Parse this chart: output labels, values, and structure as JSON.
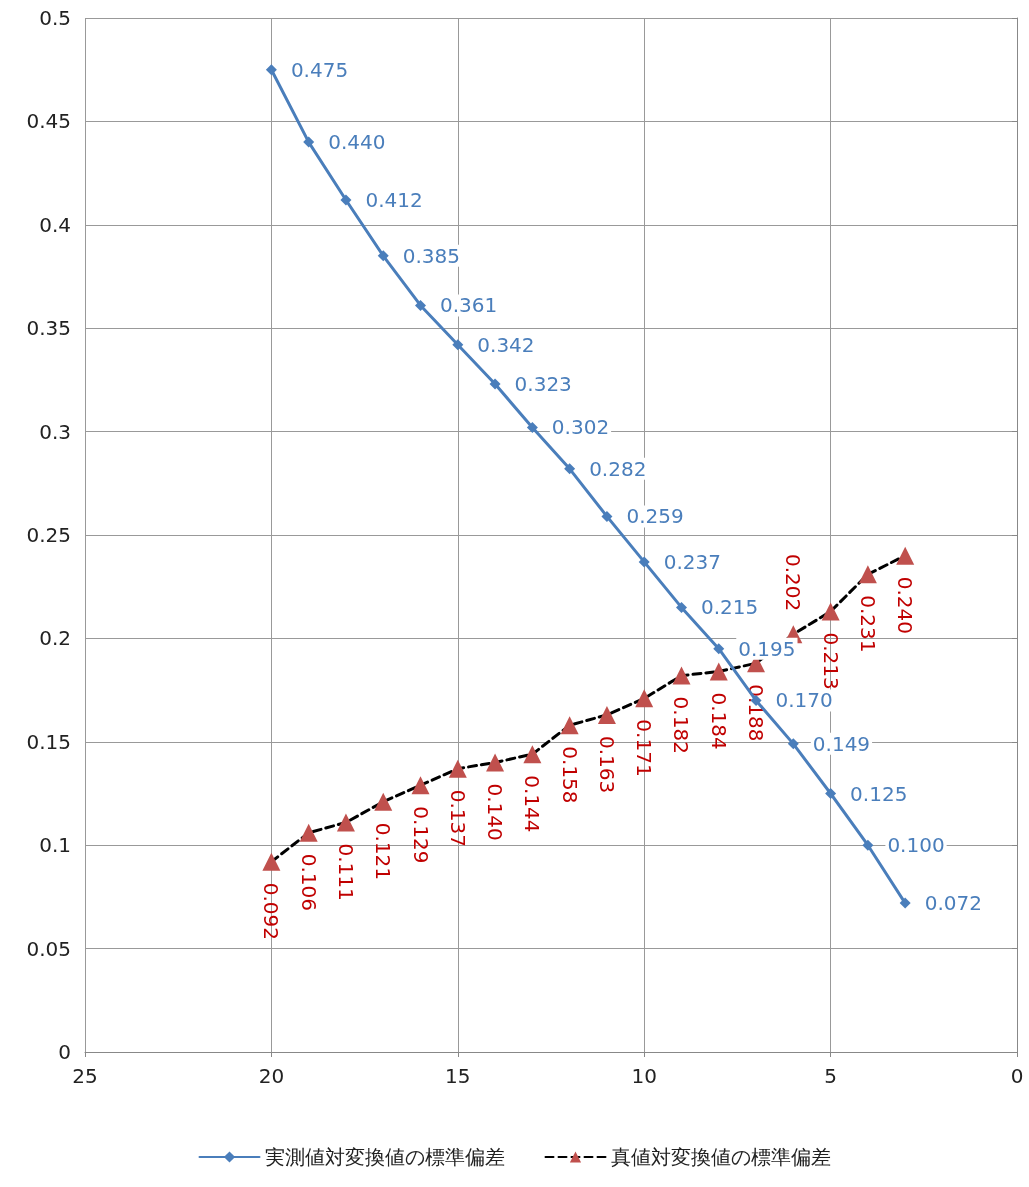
{
  "chart_data": {
    "type": "line",
    "x": [
      20,
      19,
      18,
      17,
      16,
      15,
      14,
      13,
      12,
      11,
      10,
      9,
      8,
      7,
      6,
      5,
      4,
      3
    ],
    "series": [
      {
        "name": "実測値対変換値の標準偏差",
        "color": "#4a7ebb",
        "marker": "diamond",
        "line_style": "solid",
        "values": [
          0.475,
          0.44,
          0.412,
          0.385,
          0.361,
          0.342,
          0.323,
          0.302,
          0.282,
          0.259,
          0.237,
          0.215,
          0.195,
          0.17,
          0.149,
          0.125,
          0.1,
          0.072
        ],
        "value_labels": [
          "0.475",
          "0.440",
          "0.412",
          "0.385",
          "0.361",
          "0.342",
          "0.323",
          "0.302",
          "0.282",
          "0.259",
          "0.237",
          "0.215",
          "0.195",
          "0.170",
          "0.149",
          "0.125",
          "0.100",
          "0.072"
        ]
      },
      {
        "name": "真値対変換値の標準偏差",
        "color": "#c0504d",
        "marker": "triangle",
        "line_style": "dashed",
        "values": [
          0.092,
          0.106,
          0.111,
          0.121,
          0.129,
          0.137,
          0.14,
          0.144,
          0.158,
          0.163,
          0.171,
          0.182,
          0.184,
          0.188,
          0.202,
          0.213,
          0.231,
          0.24
        ],
        "value_labels": [
          "0.092",
          "0.106",
          "0.111",
          "0.121",
          "0.129",
          "0.137",
          "0.140",
          "0.144",
          "0.158",
          "0.163",
          "0.171",
          "0.182",
          "0.184",
          "0.188",
          "0.202",
          "0.213",
          "0.231",
          "0.240"
        ]
      }
    ],
    "xlim": [
      25,
      0
    ],
    "xticks": [
      25,
      20,
      15,
      10,
      5,
      0
    ],
    "ylim": [
      0,
      0.5
    ],
    "yticks": [
      0,
      0.05,
      0.1,
      0.15,
      0.2,
      0.25,
      0.3,
      0.35,
      0.4,
      0.45,
      0.5
    ],
    "grid": true,
    "legend": "bottom"
  }
}
